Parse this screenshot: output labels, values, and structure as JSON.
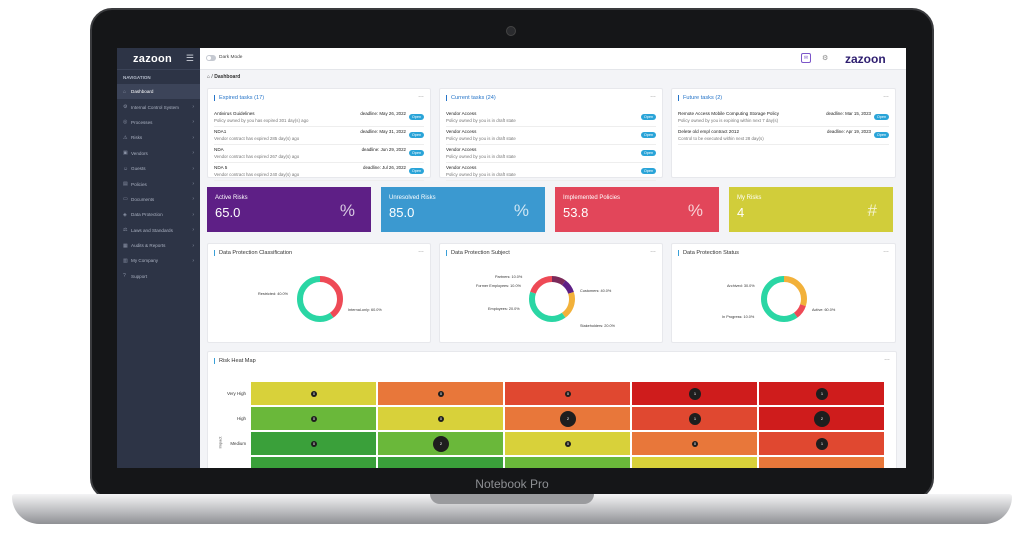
{
  "app": {
    "logo": "zazoon",
    "top_logo": "zazoon",
    "dark_mode_label": "Dark Mode",
    "device_label": "Notebook Pro"
  },
  "sidebar": {
    "nav_label": "NAVIGATION",
    "items": [
      {
        "label": "Dashboard",
        "icon": "home-icon",
        "active": true
      },
      {
        "label": "Internal Control System",
        "icon": "settings-icon"
      },
      {
        "label": "Processes",
        "icon": "process-icon"
      },
      {
        "label": "Risks",
        "icon": "warning-icon"
      },
      {
        "label": "Vendors",
        "icon": "vendor-icon"
      },
      {
        "label": "Guests",
        "icon": "user-icon"
      },
      {
        "label": "Policies",
        "icon": "policy-icon"
      },
      {
        "label": "Documents",
        "icon": "document-icon"
      },
      {
        "label": "Data Protection",
        "icon": "shield-icon"
      },
      {
        "label": "Laws and Standards",
        "icon": "law-icon"
      },
      {
        "label": "Audits & Reports",
        "icon": "chart-icon"
      },
      {
        "label": "My Company",
        "icon": "building-icon"
      },
      {
        "label": "Support",
        "icon": "support-icon"
      }
    ]
  },
  "breadcrumb": {
    "current": "Dashboard"
  },
  "expired": {
    "title": "Expired tasks (17)",
    "rows": [
      {
        "name": "Antivirus Guidelines",
        "desc": "Policy owned by you has expired 301 day(s) ago",
        "deadline": "deadline: May 26, 2022",
        "btn": "Open"
      },
      {
        "name": "NDA1",
        "desc": "Vendor contract has expired 285 day(s) ago",
        "deadline": "deadline: May 31, 2022",
        "btn": "Open"
      },
      {
        "name": "NDA",
        "desc": "Vendor contract has expired 267 day(s) ago",
        "deadline": "deadline: Jun 29, 2022",
        "btn": "Open"
      },
      {
        "name": "NDA 5",
        "desc": "Vendor contract has expired 240 day(s) ago",
        "deadline": "deadline: Jul 26, 2022",
        "btn": "Open"
      }
    ]
  },
  "current": {
    "title": "Current tasks (24)",
    "rows": [
      {
        "name": "Vendor Access",
        "desc": "Policy owned by you is in draft state",
        "btn": "Open"
      },
      {
        "name": "Vendor Access",
        "desc": "Policy owned by you is in draft state",
        "btn": "Open"
      },
      {
        "name": "Vendor Access",
        "desc": "Policy owned by you is in draft state",
        "btn": "Open"
      },
      {
        "name": "Vendor Access",
        "desc": "Policy owned by you is in draft state",
        "btn": "Open"
      }
    ]
  },
  "future": {
    "title": "Future tasks (2)",
    "rows": [
      {
        "name": "Remote Access Mobile Computing Storage Policy",
        "desc": "Policy owned by you is expiring within next 7 day(s)",
        "deadline": "deadline: Mar 15, 2023",
        "btn": "Open"
      },
      {
        "name": "Delete old empl contract 2012",
        "desc": "Control to be executed within next 28 day(s)",
        "deadline": "deadline: Apr 19, 2023",
        "btn": "Open"
      }
    ]
  },
  "stats": [
    {
      "label": "Active Risks",
      "value": "65.0",
      "sym": "%",
      "color": "#5e1f86"
    },
    {
      "label": "Unresolved Risks",
      "value": "85.0",
      "sym": "%",
      "color": "#3b99d0"
    },
    {
      "label": "Implemented Policies",
      "value": "53.8",
      "sym": "%",
      "color": "#e2465a"
    },
    {
      "label": "My Risks",
      "value": "4",
      "sym": "#",
      "color": "#d1cd3a"
    }
  ],
  "classification": {
    "title": "Data Protection Classification",
    "labels": [
      "Restricted: 40.0%",
      "Internal-only: 60.0%"
    ],
    "values": [
      40,
      60
    ],
    "colors": [
      "#ee4a56",
      "#2ad6a4"
    ]
  },
  "subject": {
    "title": "Data Protection Subject",
    "labels": [
      "Partners: 10.0%",
      "Former Employees: 10.0%",
      "Employees: 20.0%",
      "Customers: 40.0%",
      "Stakeholders: 20.0%"
    ],
    "values": [
      10,
      10,
      20,
      40,
      20
    ],
    "colors": [
      "#7b2a5a",
      "#5e1f86",
      "#f2b13a",
      "#2ad6a4",
      "#ee4a56"
    ]
  },
  "status": {
    "title": "Data Protection Status",
    "labels": [
      "Archived: 30.0%",
      "In Progress: 10.0%",
      "Active: 60.0%"
    ],
    "values": [
      30,
      10,
      60
    ],
    "colors": [
      "#f2b13a",
      "#ee4a56",
      "#2ad6a4"
    ]
  },
  "heatmap": {
    "title": "Risk Heat Map",
    "axis_label": "Impact",
    "rows": [
      {
        "label": "Very High",
        "colors": [
          "#d8d13a",
          "#e8773a",
          "#e04830",
          "#cf1c1c",
          "#cf1c1c"
        ],
        "counts": [
          "0",
          "0",
          "0",
          "1",
          "1"
        ]
      },
      {
        "label": "High",
        "colors": [
          "#6ab83a",
          "#d8d13a",
          "#e8773a",
          "#e04830",
          "#cf1c1c"
        ],
        "counts": [
          "0",
          "0",
          "2",
          "1",
          "2"
        ]
      },
      {
        "label": "Medium",
        "colors": [
          "#3aa03a",
          "#6ab83a",
          "#d8d13a",
          "#e8773a",
          "#e04830"
        ],
        "counts": [
          "0",
          "2",
          "0",
          "0",
          "1"
        ]
      },
      {
        "label": "",
        "colors": [
          "#3aa03a",
          "#3aa03a",
          "#6ab83a",
          "#d8d13a",
          "#e8773a"
        ],
        "counts": [
          "",
          "",
          "",
          "",
          ""
        ]
      }
    ]
  }
}
